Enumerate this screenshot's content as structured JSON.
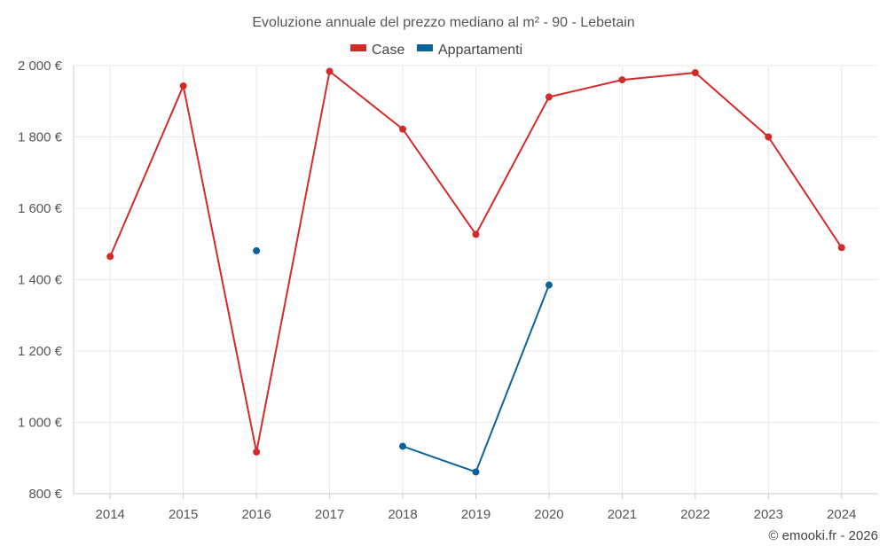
{
  "chart_data": {
    "type": "line",
    "title": "Evoluzione annuale del prezzo mediano al m² - 90 - Lebetain",
    "categories": [
      "2014",
      "2015",
      "2016",
      "2017",
      "2018",
      "2019",
      "2020",
      "2021",
      "2022",
      "2023",
      "2024"
    ],
    "series": [
      {
        "name": "Case",
        "color": "#d42a2a",
        "values": [
          1465,
          1943,
          917,
          1984,
          1822,
          1527,
          1912,
          1960,
          1980,
          1800,
          1490
        ]
      },
      {
        "name": "Appartamenti",
        "color": "#0d6399",
        "values": [
          null,
          null,
          1481,
          null,
          933,
          861,
          1385,
          null,
          null,
          null,
          null
        ]
      }
    ],
    "ylim": [
      800,
      2000
    ],
    "yticks": [
      800,
      1000,
      1200,
      1400,
      1600,
      1800,
      2000
    ],
    "ytick_labels": [
      "800 €",
      "1 000 €",
      "1 200 €",
      "1 400 €",
      "1 600 €",
      "1 800 €",
      "2 000 €"
    ],
    "grid": true,
    "legend": "top-center"
  },
  "credit": "© emooki.fr - 2026"
}
